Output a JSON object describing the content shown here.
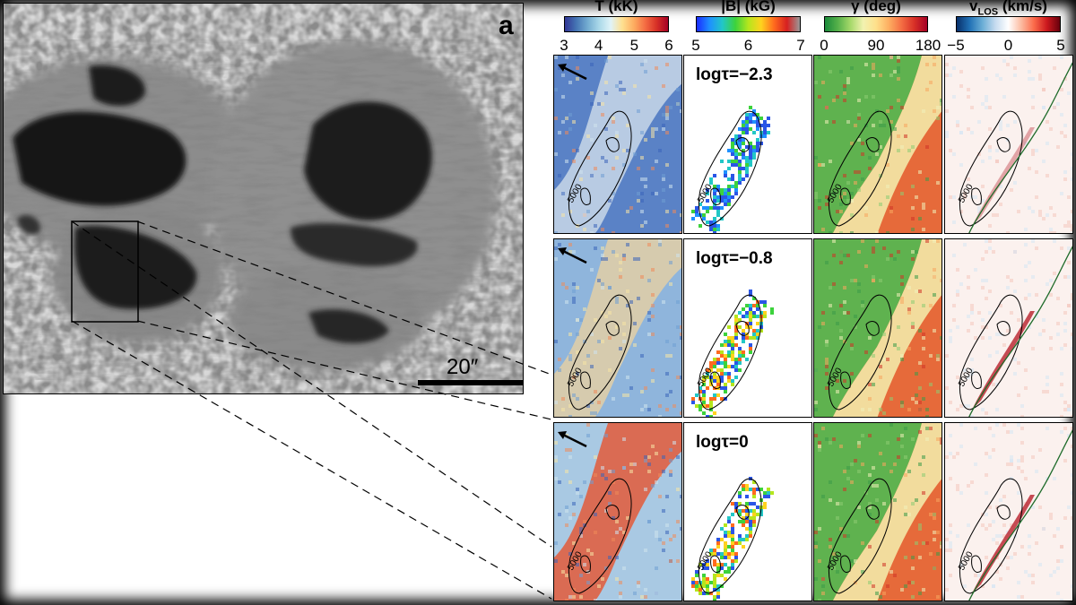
{
  "figure": {
    "panel_letter": "a",
    "scale_bar_label": "20″"
  },
  "colorbars": [
    {
      "title_main": "T (kK)",
      "title_sub": "",
      "ticks": [
        "3",
        "4",
        "5",
        "6"
      ],
      "scheme": "temperature"
    },
    {
      "title_main": "|B| (kG)",
      "title_sub": "",
      "ticks": [
        "5",
        "6",
        "7"
      ],
      "scheme": "field"
    },
    {
      "title_main": "γ (deg)",
      "title_sub": "",
      "ticks": [
        "0",
        "90",
        "180"
      ],
      "scheme": "inclination"
    },
    {
      "title_main": "v",
      "title_sub": "LOS",
      "title_unit": " (km/s)",
      "ticks": [
        "−5",
        "0",
        "5"
      ],
      "scheme": "velocity"
    }
  ],
  "rows": [
    {
      "tau_label": "logτ=−2.3"
    },
    {
      "tau_label": "logτ=−0.8"
    },
    {
      "tau_label": "logτ=0"
    }
  ],
  "contour_label": "5000",
  "colors": {
    "cold": "#2c5fb8",
    "hot": "#b5121b",
    "green": "#2e8b2e",
    "velocity_line": "#1e6b2a"
  }
}
